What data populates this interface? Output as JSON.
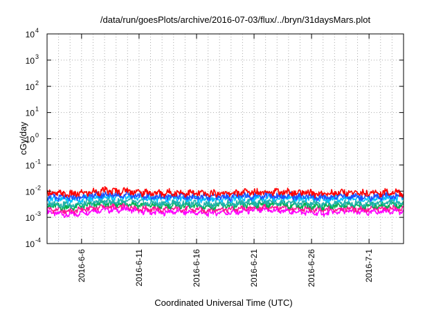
{
  "chart_data": {
    "type": "line",
    "title": "/data/run/goesPlots/archive/2016-07-03/flux/../bryn/31daysMars.plot",
    "xlabel": "Coordinated Universal Time (UTC)",
    "ylabel": "cGy/day",
    "x_range": [
      "2016-06-03",
      "2016-07-04"
    ],
    "x_tick_labels": [
      "2016-6-6",
      "2016-6-11",
      "2016-6-16",
      "2016-6-21",
      "2016-6-26",
      "2016-7-1"
    ],
    "x_tick_dates": [
      "2016-06-06",
      "2016-06-11",
      "2016-06-16",
      "2016-06-21",
      "2016-06-26",
      "2016-07-01"
    ],
    "y_scale": "log",
    "ylim": [
      0.0001,
      10000
    ],
    "y_tick_labels": [
      {
        "base": "10",
        "exp": "-4",
        "value": 0.0001
      },
      {
        "base": "10",
        "exp": "-3",
        "value": 0.001
      },
      {
        "base": "10",
        "exp": "-2",
        "value": 0.01
      },
      {
        "base": "10",
        "exp": "-1",
        "value": 0.1
      },
      {
        "base": "10",
        "exp": "0",
        "value": 1
      },
      {
        "base": "10",
        "exp": "1",
        "value": 10
      },
      {
        "base": "10",
        "exp": "2",
        "value": 100
      },
      {
        "base": "10",
        "exp": "3",
        "value": 1000
      },
      {
        "base": "10",
        "exp": "4",
        "value": 10000
      }
    ],
    "grid": true,
    "series_note": "values approximate: daily-scale levels per series, from the plotted band",
    "series": [
      {
        "color": "#ff00ff",
        "values": [
          0.0016,
          0.0014,
          0.0012,
          0.0015,
          0.0018,
          0.002,
          0.0019,
          0.0021,
          0.0017,
          0.0016,
          0.0015,
          0.0017,
          0.0016,
          0.0015,
          0.0014,
          0.0016,
          0.0015,
          0.0017,
          0.0018,
          0.0019,
          0.0018,
          0.0017,
          0.0016,
          0.0015,
          0.0014,
          0.0016,
          0.0017,
          0.0016,
          0.0015,
          0.0017,
          0.0018,
          0.0016
        ]
      },
      {
        "color": "#ff1493",
        "values": [
          0.0021,
          0.0019,
          0.0017,
          0.002,
          0.0023,
          0.0026,
          0.0025,
          0.0027,
          0.0022,
          0.0021,
          0.002,
          0.0022,
          0.0021,
          0.002,
          0.0019,
          0.0021,
          0.002,
          0.0022,
          0.0023,
          0.0025,
          0.0023,
          0.0022,
          0.0021,
          0.002,
          0.0019,
          0.0021,
          0.0022,
          0.0021,
          0.002,
          0.0022,
          0.0023,
          0.0021
        ]
      },
      {
        "color": "#00b050",
        "values": [
          0.0028,
          0.0026,
          0.0024,
          0.0027,
          0.0031,
          0.0034,
          0.0033,
          0.0035,
          0.003,
          0.0029,
          0.0027,
          0.003,
          0.0028,
          0.0027,
          0.0026,
          0.0028,
          0.0027,
          0.003,
          0.0031,
          0.0033,
          0.0031,
          0.003,
          0.0028,
          0.0027,
          0.0026,
          0.0028,
          0.003,
          0.0028,
          0.0027,
          0.0029,
          0.0031,
          0.0028
        ]
      },
      {
        "color": "#20b2aa",
        "values": [
          0.0034,
          0.0032,
          0.003,
          0.0033,
          0.0037,
          0.0041,
          0.004,
          0.0042,
          0.0036,
          0.0035,
          0.0033,
          0.0036,
          0.0034,
          0.0033,
          0.0032,
          0.0034,
          0.0033,
          0.0036,
          0.0037,
          0.004,
          0.0037,
          0.0036,
          0.0034,
          0.0033,
          0.0032,
          0.0034,
          0.0036,
          0.0034,
          0.0033,
          0.0035,
          0.0037,
          0.0034
        ]
      },
      {
        "color": "#00bfff",
        "values": [
          0.0052,
          0.0049,
          0.0046,
          0.005,
          0.0056,
          0.0062,
          0.006,
          0.0064,
          0.0055,
          0.0053,
          0.005,
          0.0055,
          0.0052,
          0.005,
          0.0048,
          0.0052,
          0.005,
          0.0055,
          0.0056,
          0.006,
          0.0056,
          0.0055,
          0.0052,
          0.005,
          0.0048,
          0.0052,
          0.0055,
          0.0052,
          0.005,
          0.0053,
          0.0056,
          0.0052
        ]
      },
      {
        "color": "#1e50ff",
        "values": [
          0.0062,
          0.0058,
          0.0055,
          0.006,
          0.0067,
          0.0074,
          0.0072,
          0.0076,
          0.0066,
          0.0063,
          0.006,
          0.0066,
          0.0062,
          0.006,
          0.0057,
          0.0062,
          0.006,
          0.0066,
          0.0067,
          0.0072,
          0.0067,
          0.0066,
          0.0062,
          0.006,
          0.0057,
          0.0062,
          0.0066,
          0.0062,
          0.006,
          0.0063,
          0.0067,
          0.0062
        ]
      },
      {
        "color": "#ff0000",
        "values": [
          0.0085,
          0.008,
          0.0075,
          0.0082,
          0.0092,
          0.0102,
          0.0098,
          0.0105,
          0.009,
          0.0086,
          0.0082,
          0.009,
          0.0085,
          0.0082,
          0.0078,
          0.0085,
          0.0082,
          0.009,
          0.0092,
          0.0099,
          0.0092,
          0.009,
          0.0085,
          0.0082,
          0.0078,
          0.0085,
          0.009,
          0.0085,
          0.0082,
          0.0087,
          0.0092,
          0.0085
        ]
      }
    ]
  }
}
